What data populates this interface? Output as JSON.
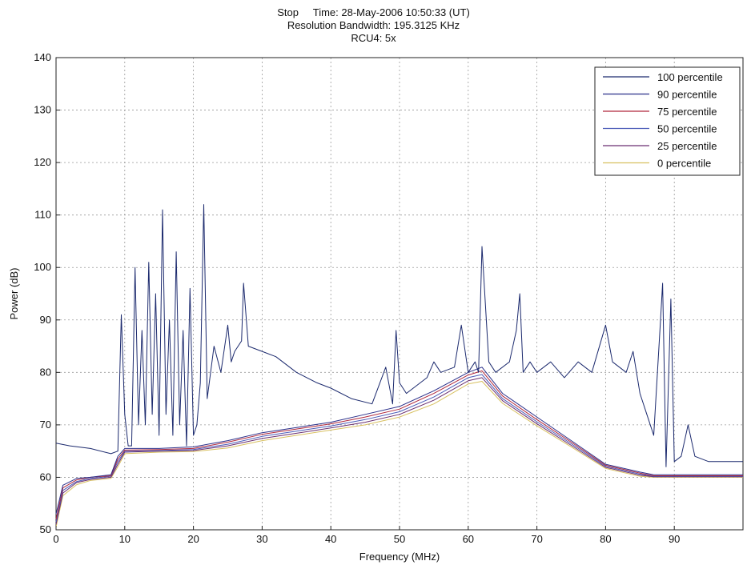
{
  "title_line1": "Stop     Time: 28-May-2006 10:50:33 (UT)",
  "title_line2": "Resolution Bandwidth: 195.3125 KHz",
  "title_line3": "RCU4: 5x",
  "chart_data": {
    "type": "line",
    "xlabel": "Frequency (MHz)",
    "ylabel": "Power (dB)",
    "xlim": [
      0,
      100
    ],
    "ylim": [
      50,
      140
    ],
    "xticks": [
      0,
      10,
      20,
      30,
      40,
      50,
      60,
      70,
      80,
      90
    ],
    "yticks": [
      50,
      60,
      70,
      80,
      90,
      100,
      110,
      120,
      130,
      140
    ],
    "grid": true,
    "legend_position": "top-right",
    "series": [
      {
        "name": "100 percentile",
        "color": "#1c2a6e",
        "x": [
          0,
          2,
          5,
          8,
          9,
          9.5,
          10,
          10.5,
          11,
          11.5,
          12,
          12.5,
          13,
          13.5,
          14,
          14.5,
          15,
          15.5,
          16,
          16.5,
          17,
          17.5,
          18,
          18.5,
          19,
          19.5,
          20,
          20.5,
          21,
          21.5,
          22,
          23,
          24,
          25,
          25.5,
          26,
          27,
          27.3,
          28,
          30,
          32,
          35,
          38,
          40,
          43,
          46,
          48,
          49,
          49.5,
          50,
          51,
          52,
          54,
          55,
          56,
          58,
          59,
          60,
          61,
          61.5,
          62,
          63,
          64,
          66,
          67,
          67.5,
          68,
          69,
          70,
          72,
          74,
          76,
          78,
          80,
          81,
          83,
          84,
          85,
          86,
          87,
          88,
          88.3,
          88.8,
          89.5,
          90,
          91,
          92,
          93,
          95,
          97,
          100
        ],
        "y": [
          66.5,
          66,
          65.5,
          64.5,
          65,
          91,
          72,
          66,
          66,
          100,
          70,
          88,
          70,
          101,
          72,
          95,
          68,
          111,
          72,
          90,
          68,
          103,
          70,
          88,
          66,
          96,
          68,
          70,
          78,
          112,
          75,
          85,
          80,
          89,
          82,
          84,
          86,
          97,
          85,
          84,
          83,
          80,
          78,
          77,
          75,
          74,
          81,
          74,
          88,
          78,
          76,
          77,
          79,
          82,
          80,
          81,
          89,
          80,
          82,
          80,
          104,
          82,
          80,
          82,
          88,
          95,
          80,
          82,
          80,
          82,
          79,
          82,
          80,
          89,
          82,
          80,
          84,
          76,
          72,
          68,
          90,
          97,
          62,
          94,
          63,
          64,
          70,
          64,
          63,
          63,
          63
        ]
      },
      {
        "name": "90 percentile",
        "color": "#2a2f8a",
        "x": [
          0,
          1,
          3,
          5,
          8,
          9,
          10,
          15,
          20,
          25,
          30,
          35,
          40,
          45,
          50,
          55,
          60,
          62,
          65,
          70,
          75,
          80,
          85,
          87,
          88,
          90,
          95,
          100
        ],
        "y": [
          53,
          58.5,
          59.8,
          60,
          60.5,
          64,
          65.5,
          65.5,
          65.8,
          67,
          68.5,
          69.5,
          70.5,
          72,
          73.5,
          76.5,
          80,
          81,
          76,
          71.5,
          67,
          62.5,
          61,
          60.5,
          60.5,
          60.5,
          60.5,
          60.5
        ]
      },
      {
        "name": "75 percentile",
        "color": "#b0283c",
        "x": [
          0,
          1,
          3,
          5,
          8,
          9,
          10,
          15,
          20,
          25,
          30,
          35,
          40,
          45,
          50,
          55,
          60,
          62,
          65,
          70,
          75,
          80,
          85,
          87,
          88,
          90,
          95,
          100
        ],
        "y": [
          52,
          58,
          59.5,
          60,
          60.3,
          63.5,
          65.2,
          65.3,
          65.5,
          66.7,
          68.2,
          69.2,
          70.2,
          71.5,
          73,
          76,
          79.5,
          80.3,
          75.5,
          71,
          66.7,
          62.3,
          60.8,
          60.3,
          60.3,
          60.3,
          60.3,
          60.3
        ]
      },
      {
        "name": "50 percentile",
        "color": "#4a5ab8",
        "x": [
          0,
          1,
          3,
          5,
          8,
          9,
          10,
          15,
          20,
          25,
          30,
          35,
          40,
          45,
          50,
          55,
          60,
          62,
          65,
          70,
          75,
          80,
          85,
          87,
          88,
          90,
          95,
          100
        ],
        "y": [
          51.5,
          57.5,
          59.2,
          59.8,
          60.2,
          63,
          65,
          65.1,
          65.3,
          66.3,
          67.8,
          68.8,
          69.8,
          71,
          72.5,
          75.3,
          79,
          79.6,
          75,
          70.6,
          66.4,
          62.1,
          60.6,
          60.2,
          60.2,
          60.2,
          60.2,
          60.2
        ]
      },
      {
        "name": "25 percentile",
        "color": "#6a2f70",
        "x": [
          0,
          1,
          3,
          5,
          8,
          9,
          10,
          15,
          20,
          25,
          30,
          35,
          40,
          45,
          50,
          55,
          60,
          62,
          65,
          70,
          75,
          80,
          85,
          87,
          88,
          90,
          95,
          100
        ],
        "y": [
          51,
          57,
          59,
          59.6,
          60,
          62.5,
          64.8,
          65,
          65.1,
          66,
          67.4,
          68.4,
          69.4,
          70.5,
          72,
          74.7,
          78.4,
          79,
          74.6,
          70.2,
          66.1,
          61.9,
          60.4,
          60.1,
          60.1,
          60.1,
          60.1,
          60.1
        ]
      },
      {
        "name": "0 percentile",
        "color": "#d8c060",
        "x": [
          0,
          1,
          3,
          5,
          8,
          9,
          10,
          15,
          20,
          25,
          30,
          35,
          40,
          45,
          50,
          55,
          60,
          62,
          65,
          70,
          75,
          80,
          85,
          87,
          88,
          90,
          95,
          100
        ],
        "y": [
          50.5,
          56.5,
          58.6,
          59.4,
          59.8,
          62,
          64.5,
          64.8,
          64.9,
          65.6,
          67,
          68,
          69,
          70,
          71.5,
          74,
          77.8,
          78.3,
          74.1,
          69.8,
          65.8,
          61.7,
          60.2,
          60,
          60,
          60,
          60,
          60
        ]
      }
    ]
  }
}
